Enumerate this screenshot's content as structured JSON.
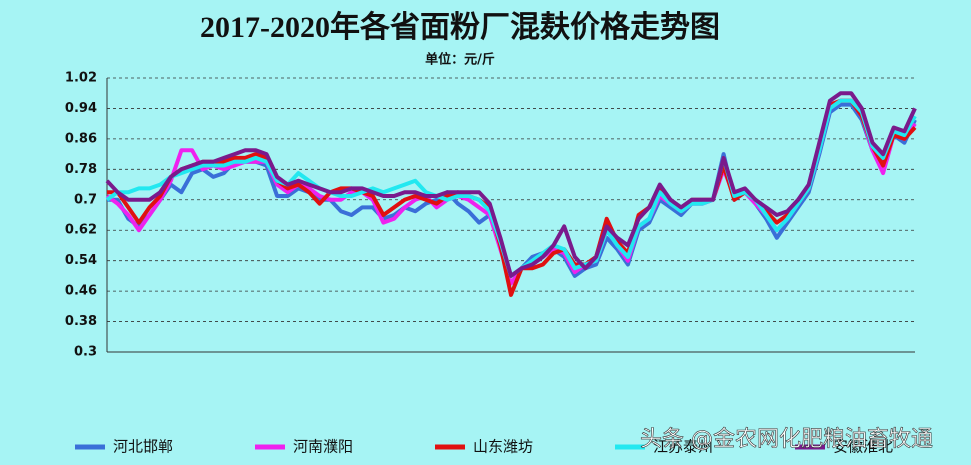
{
  "chart_data": {
    "type": "line",
    "title": "2017-2020年各省面粉厂混麸价格走势图",
    "subtitle": "单位：元/斤",
    "categories": [
      null,
      null,
      null,
      null,
      null,
      null,
      null,
      null,
      null,
      null,
      null,
      null,
      null,
      null,
      null,
      null,
      null,
      null,
      null,
      null,
      null,
      null,
      null,
      null,
      null,
      null,
      null,
      null,
      null,
      null,
      null,
      null,
      null,
      null,
      null,
      null,
      null,
      null,
      null,
      null,
      null,
      null,
      null,
      null,
      null,
      null,
      null,
      null,
      null,
      null,
      null,
      null,
      null,
      null,
      null,
      null,
      null,
      null,
      null,
      null,
      null,
      null,
      null,
      null,
      null,
      null,
      null,
      null,
      null,
      null,
      null,
      null,
      null,
      null,
      null,
      null,
      null
    ],
    "ylim": [
      0.3,
      1.02
    ],
    "yticks": [
      0.3,
      0.38,
      0.46,
      0.54,
      0.62,
      0.7,
      0.78,
      0.86,
      0.94,
      1.02
    ],
    "grid": true,
    "legend": "bottom",
    "series": [
      {
        "name": "河北邯郸",
        "color": "#3a6fd8",
        "values": [
          0.7,
          0.7,
          0.65,
          0.63,
          0.66,
          0.7,
          0.74,
          0.72,
          0.77,
          0.78,
          0.76,
          0.77,
          0.8,
          0.8,
          0.8,
          0.79,
          0.71,
          0.71,
          0.73,
          0.72,
          0.7,
          0.7,
          0.67,
          0.66,
          0.68,
          0.68,
          0.65,
          0.66,
          0.68,
          0.67,
          0.69,
          0.7,
          0.72,
          0.69,
          0.67,
          0.64,
          0.66,
          0.58,
          0.5,
          0.52,
          0.55,
          0.56,
          0.57,
          0.55,
          0.5,
          0.52,
          0.53,
          0.6,
          0.57,
          0.53,
          0.62,
          0.64,
          0.7,
          0.68,
          0.66,
          0.69,
          0.69,
          0.7,
          0.82,
          0.7,
          0.72,
          0.69,
          0.65,
          0.6,
          0.64,
          0.68,
          0.72,
          0.82,
          0.93,
          0.95,
          0.95,
          0.91,
          0.83,
          0.8,
          0.87,
          0.85,
          0.91
        ]
      },
      {
        "name": "河南濮阳",
        "color": "#ee22ee",
        "values": [
          0.71,
          0.69,
          0.66,
          0.62,
          0.66,
          0.7,
          0.75,
          0.83,
          0.83,
          0.78,
          0.79,
          0.78,
          0.79,
          0.8,
          0.8,
          0.8,
          0.74,
          0.72,
          0.74,
          0.73,
          0.71,
          0.7,
          0.7,
          0.72,
          0.72,
          0.7,
          0.64,
          0.65,
          0.68,
          0.7,
          0.71,
          0.68,
          0.7,
          0.71,
          0.7,
          0.68,
          0.66,
          0.57,
          0.48,
          0.52,
          0.53,
          0.55,
          0.57,
          0.56,
          0.51,
          0.53,
          0.54,
          0.62,
          0.58,
          0.54,
          0.63,
          0.65,
          0.71,
          0.69,
          0.67,
          0.69,
          0.69,
          0.7,
          0.78,
          0.71,
          0.72,
          0.69,
          0.66,
          0.62,
          0.65,
          0.69,
          0.73,
          0.83,
          0.94,
          0.96,
          0.96,
          0.92,
          0.83,
          0.77,
          0.87,
          0.86,
          0.9
        ]
      },
      {
        "name": "山东潍坊",
        "color": "#e01010",
        "values": [
          0.72,
          0.72,
          0.68,
          0.64,
          0.68,
          0.71,
          0.76,
          0.78,
          0.79,
          0.8,
          0.8,
          0.8,
          0.81,
          0.81,
          0.82,
          0.81,
          0.75,
          0.73,
          0.74,
          0.72,
          0.69,
          0.72,
          0.73,
          0.73,
          0.72,
          0.71,
          0.66,
          0.68,
          0.7,
          0.71,
          0.7,
          0.69,
          0.71,
          0.72,
          0.71,
          0.7,
          0.68,
          0.58,
          0.45,
          0.52,
          0.52,
          0.53,
          0.56,
          0.57,
          0.53,
          0.53,
          0.55,
          0.65,
          0.59,
          0.56,
          0.66,
          0.68,
          0.73,
          0.7,
          0.67,
          0.7,
          0.7,
          0.7,
          0.79,
          0.7,
          0.72,
          0.7,
          0.67,
          0.64,
          0.66,
          0.69,
          0.73,
          0.84,
          0.95,
          0.96,
          0.96,
          0.92,
          0.84,
          0.79,
          0.87,
          0.86,
          0.89
        ]
      },
      {
        "name": "江苏泰州",
        "color": "#22e8f0",
        "values": [
          0.7,
          0.72,
          0.72,
          0.73,
          0.73,
          0.74,
          0.76,
          0.77,
          0.78,
          0.79,
          0.79,
          0.79,
          0.8,
          0.8,
          0.81,
          0.8,
          0.75,
          0.74,
          0.77,
          0.75,
          0.73,
          0.72,
          0.71,
          0.71,
          0.72,
          0.73,
          0.72,
          0.73,
          0.74,
          0.75,
          0.72,
          0.71,
          0.7,
          0.71,
          0.71,
          0.7,
          0.67,
          0.59,
          0.5,
          0.52,
          0.54,
          0.56,
          0.58,
          0.57,
          0.52,
          0.53,
          0.54,
          0.62,
          0.58,
          0.55,
          0.63,
          0.65,
          0.72,
          0.69,
          0.67,
          0.69,
          0.69,
          0.7,
          0.81,
          0.71,
          0.72,
          0.7,
          0.66,
          0.62,
          0.65,
          0.69,
          0.73,
          0.83,
          0.94,
          0.96,
          0.96,
          0.93,
          0.84,
          0.81,
          0.88,
          0.87,
          0.92
        ]
      },
      {
        "name": "安徽淮北",
        "color": "#7a1a8c",
        "values": [
          0.75,
          0.72,
          0.7,
          0.7,
          0.7,
          0.72,
          0.76,
          0.78,
          0.79,
          0.8,
          0.8,
          0.81,
          0.82,
          0.83,
          0.83,
          0.82,
          0.76,
          0.74,
          0.75,
          0.74,
          0.73,
          0.72,
          0.72,
          0.73,
          0.73,
          0.72,
          0.71,
          0.71,
          0.72,
          0.72,
          0.71,
          0.71,
          0.72,
          0.72,
          0.72,
          0.72,
          0.69,
          0.6,
          0.5,
          0.52,
          0.53,
          0.55,
          0.58,
          0.63,
          0.55,
          0.52,
          0.55,
          0.63,
          0.6,
          0.58,
          0.65,
          0.68,
          0.74,
          0.7,
          0.68,
          0.7,
          0.7,
          0.7,
          0.81,
          0.72,
          0.73,
          0.7,
          0.68,
          0.66,
          0.67,
          0.7,
          0.74,
          0.85,
          0.96,
          0.98,
          0.98,
          0.94,
          0.85,
          0.82,
          0.89,
          0.88,
          0.94
        ]
      }
    ]
  },
  "overlay_text": "头条 @金农网化肥粮油畜牧通"
}
